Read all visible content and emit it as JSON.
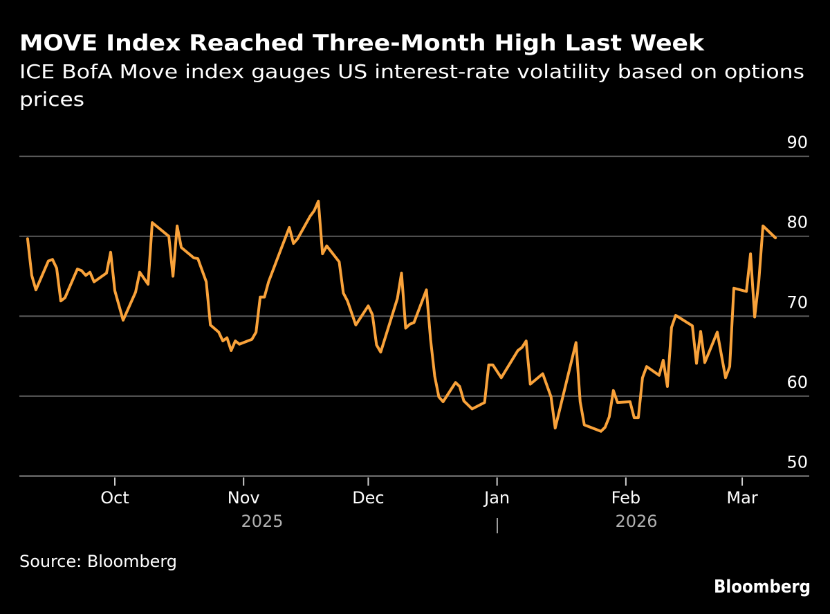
{
  "header": {
    "title": "MOVE Index Reached Three-Month High Last Week",
    "subtitle_line1": "ICE BofA Move index gauges US interest-rate volatility based on options",
    "subtitle_line2": "prices"
  },
  "footer": {
    "source": "Source: Bloomberg",
    "logo": "Bloomberg"
  },
  "colors": {
    "background": "#000000",
    "line": "#f9a23a",
    "grid": "#5a5a5a",
    "text": "#ffffff",
    "year_text": "#b0b0b0"
  },
  "chart_data": {
    "type": "line",
    "title": "MOVE Index Reached Three-Month High Last Week",
    "xlabel": "",
    "ylabel": "",
    "ylim": [
      50,
      90
    ],
    "yticks": [
      "90",
      "80",
      "70",
      "60",
      "50"
    ],
    "y_axis_position": "right",
    "grid": true,
    "x_ticks": [
      {
        "date": "2025-10-01",
        "label": "Oct"
      },
      {
        "date": "2025-11-01",
        "label": "Nov"
      },
      {
        "date": "2025-12-01",
        "label": "Dec"
      },
      {
        "date": "2026-01-01",
        "label": "Jan"
      },
      {
        "date": "2026-02-01",
        "label": "Feb"
      },
      {
        "date": "2026-03-01",
        "label": "Mar"
      }
    ],
    "year_labels": [
      "2025",
      "2026"
    ],
    "year_separator": "|",
    "series": [
      {
        "x": [
          "2025-09-10",
          "2025-09-11",
          "2025-09-12",
          "2025-09-15",
          "2025-09-16",
          "2025-09-17",
          "2025-09-18",
          "2025-09-19",
          "2025-09-22",
          "2025-09-23",
          "2025-09-24",
          "2025-09-25",
          "2025-09-26",
          "2025-09-29",
          "2025-09-30",
          "2025-10-01",
          "2025-10-03",
          "2025-10-06",
          "2025-10-07",
          "2025-10-09",
          "2025-10-10",
          "2025-10-14",
          "2025-10-15",
          "2025-10-16",
          "2025-10-17",
          "2025-10-20",
          "2025-10-21",
          "2025-10-23",
          "2025-10-24",
          "2025-10-26",
          "2025-10-27",
          "2025-10-28",
          "2025-10-29",
          "2025-10-30",
          "2025-10-31",
          "2025-11-03",
          "2025-11-04",
          "2025-11-05",
          "2025-11-06",
          "2025-11-07",
          "2025-11-10",
          "2025-11-12",
          "2025-11-13",
          "2025-11-14",
          "2025-11-17",
          "2025-11-18",
          "2025-11-19",
          "2025-11-20",
          "2025-11-21",
          "2025-11-24",
          "2025-11-25",
          "2025-11-26",
          "2025-11-28",
          "2025-12-01",
          "2025-12-02",
          "2025-12-03",
          "2025-12-04",
          "2025-12-08",
          "2025-12-09",
          "2025-12-10",
          "2025-12-11",
          "2025-12-12",
          "2025-12-15",
          "2025-12-16",
          "2025-12-17",
          "2025-12-18",
          "2025-12-19",
          "2025-12-22",
          "2025-12-23",
          "2025-12-24",
          "2025-12-26",
          "2025-12-29",
          "2025-12-30",
          "2025-12-31",
          "2026-01-02",
          "2026-01-06",
          "2026-01-07",
          "2026-01-08",
          "2026-01-09",
          "2026-01-12",
          "2026-01-14",
          "2026-01-15",
          "2026-01-20",
          "2026-01-21",
          "2026-01-22",
          "2026-01-26",
          "2026-01-27",
          "2026-01-28",
          "2026-01-29",
          "2026-01-30",
          "2026-02-02",
          "2026-02-03",
          "2026-02-04",
          "2026-02-05",
          "2026-02-06",
          "2026-02-09",
          "2026-02-10",
          "2026-02-11",
          "2026-02-12",
          "2026-02-13",
          "2026-02-17",
          "2026-02-18",
          "2026-02-19",
          "2026-02-20",
          "2026-02-23",
          "2026-02-25",
          "2026-02-26",
          "2026-02-27",
          "2026-03-02",
          "2026-03-03",
          "2026-03-04",
          "2026-03-05",
          "2026-03-06",
          "2026-03-09"
        ],
        "y": [
          79.7,
          75.1,
          73.3,
          76.9,
          77.1,
          76.0,
          71.9,
          72.3,
          75.9,
          75.7,
          75.1,
          75.5,
          74.3,
          75.4,
          78.0,
          73.2,
          69.5,
          73.0,
          75.5,
          74.0,
          81.7,
          80.0,
          75.0,
          81.3,
          78.6,
          77.3,
          77.2,
          74.3,
          68.9,
          68.0,
          66.9,
          67.3,
          65.7,
          66.9,
          66.5,
          67.1,
          68.0,
          72.4,
          72.4,
          74.3,
          78.4,
          81.1,
          79.1,
          79.7,
          82.5,
          83.2,
          84.4,
          77.8,
          78.8,
          76.8,
          72.9,
          71.9,
          68.9,
          71.3,
          70.2,
          66.4,
          65.5,
          72.2,
          75.4,
          68.5,
          69.0,
          69.2,
          73.3,
          67.1,
          62.5,
          59.9,
          59.3,
          61.7,
          61.2,
          59.4,
          58.4,
          59.2,
          63.9,
          63.9,
          62.3,
          65.7,
          66.1,
          66.9,
          61.5,
          62.8,
          59.9,
          56.0,
          66.7,
          59.3,
          56.4,
          55.6,
          56.1,
          57.4,
          60.7,
          59.2,
          59.3,
          57.3,
          57.3,
          62.3,
          63.7,
          62.6,
          64.5,
          61.2,
          68.6,
          70.1,
          68.8,
          64.1,
          68.1,
          64.2,
          68.0,
          62.3,
          63.7,
          73.5,
          73.1,
          77.8,
          69.9,
          74.4,
          81.3,
          79.8
        ]
      }
    ]
  }
}
